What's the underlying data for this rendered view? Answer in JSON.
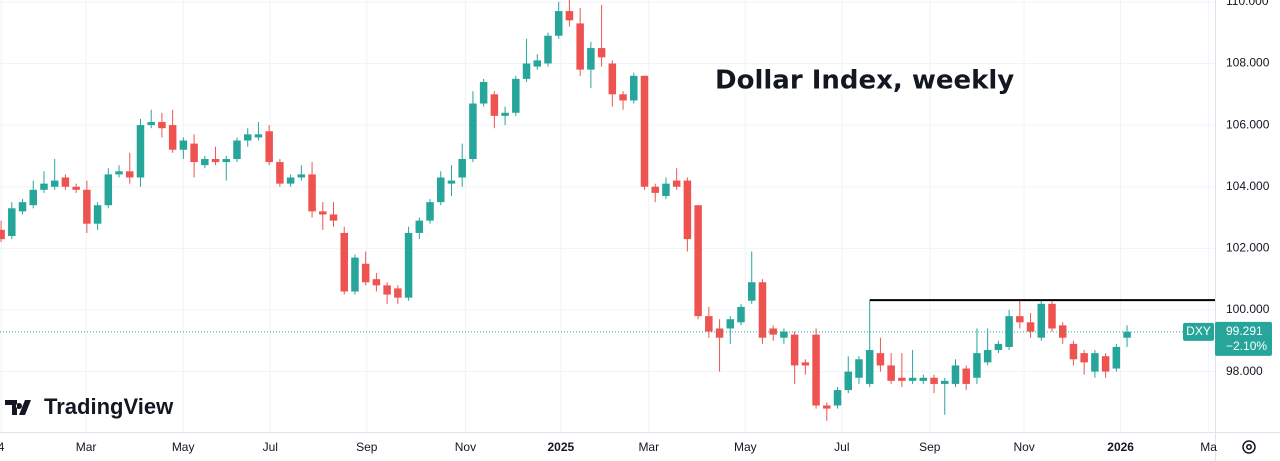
{
  "chart_data": {
    "type": "candlestick",
    "title": "Dollar Index, weekly",
    "symbol": "DXY",
    "change_label": "−2.10%",
    "watermark": "TradingView",
    "up_color": "#26a69a",
    "down_color": "#ef5350",
    "grid": true,
    "open": [
      102.6,
      102.4,
      103.2,
      103.4,
      103.9,
      104.0,
      104.3,
      104.0,
      103.9,
      102.8,
      103.4,
      104.4,
      104.5,
      104.3,
      106.0,
      106.1,
      106.0,
      105.2,
      105.4,
      104.7,
      104.9,
      104.8,
      104.9,
      105.5,
      105.6,
      105.8,
      104.8,
      104.1,
      104.3,
      104.4,
      103.2,
      103.1,
      102.5,
      100.6,
      101.5,
      101.0,
      100.8,
      100.7,
      100.4,
      102.5,
      102.9,
      103.5,
      104.1,
      104.3,
      104.9,
      106.7,
      107.0,
      106.3,
      106.4,
      107.5,
      107.9,
      108.0,
      108.9,
      109.7,
      109.3,
      107.8,
      108.5,
      108.0,
      107.0,
      106.8,
      107.6,
      104.0,
      103.7,
      104.2,
      104.2,
      103.4,
      99.8,
      99.4,
      99.4,
      99.6,
      100.3,
      100.9,
      99.4,
      99.1,
      99.2,
      98.3,
      99.2,
      96.9,
      96.9,
      97.4,
      97.8,
      97.6,
      98.6,
      98.2,
      97.8,
      97.7,
      97.7,
      97.8,
      97.6,
      97.6,
      98.1,
      97.8,
      98.3,
      98.7,
      98.8,
      99.8,
      99.6,
      99.1,
      100.2,
      99.5,
      98.9,
      98.6,
      98.0,
      98.5,
      98.1,
      99.1
    ],
    "high": [
      102.9,
      103.5,
      103.6,
      104.2,
      104.5,
      104.9,
      104.4,
      104.1,
      104.2,
      103.5,
      104.6,
      104.7,
      105.1,
      106.2,
      106.5,
      106.4,
      106.5,
      105.6,
      105.7,
      105.0,
      105.3,
      105.0,
      105.6,
      105.9,
      106.1,
      106.0,
      104.9,
      104.4,
      104.7,
      104.8,
      103.5,
      103.5,
      102.7,
      101.8,
      101.9,
      101.2,
      100.9,
      100.8,
      102.7,
      103.0,
      103.6,
      104.5,
      104.7,
      105.4,
      107.1,
      107.5,
      107.1,
      106.6,
      107.6,
      108.8,
      108.3,
      109.0,
      110.0,
      110.1,
      109.8,
      108.7,
      109.9,
      108.1,
      107.1,
      107.7,
      107.6,
      104.1,
      104.3,
      104.6,
      104.3,
      103.4,
      100.1,
      99.7,
      99.8,
      100.2,
      101.9,
      101.0,
      99.5,
      99.4,
      99.3,
      98.4,
      99.4,
      97.0,
      97.5,
      98.5,
      98.5,
      100.3,
      99.1,
      98.6,
      98.6,
      98.7,
      97.9,
      97.9,
      97.8,
      98.4,
      98.2,
      99.4,
      99.4,
      99.0,
      100.0,
      100.3,
      99.9,
      100.3,
      100.3,
      99.6,
      99.0,
      98.7,
      98.7,
      98.6,
      98.9,
      99.5
    ],
    "low": [
      102.2,
      102.3,
      103.1,
      103.3,
      103.8,
      103.9,
      103.9,
      103.8,
      102.5,
      102.6,
      103.3,
      104.3,
      104.1,
      104.0,
      105.9,
      105.6,
      105.1,
      104.9,
      104.3,
      104.6,
      104.7,
      104.2,
      104.8,
      105.3,
      105.5,
      104.7,
      104.0,
      104.0,
      104.2,
      103.0,
      102.6,
      102.7,
      100.5,
      100.5,
      100.8,
      100.6,
      100.2,
      100.2,
      100.3,
      102.3,
      102.8,
      103.4,
      103.7,
      104.0,
      104.8,
      106.6,
      105.9,
      106.0,
      106.3,
      107.4,
      107.8,
      107.9,
      108.8,
      109.2,
      107.6,
      107.2,
      107.9,
      106.6,
      106.5,
      106.7,
      103.9,
      103.5,
      103.6,
      103.9,
      101.9,
      99.7,
      99.1,
      98.0,
      98.9,
      99.5,
      100.2,
      98.9,
      99.0,
      98.9,
      97.6,
      97.9,
      96.8,
      96.4,
      96.8,
      97.3,
      97.6,
      97.5,
      98.0,
      97.6,
      97.5,
      97.6,
      97.6,
      97.3,
      96.6,
      97.5,
      97.4,
      97.6,
      98.2,
      98.6,
      98.7,
      99.4,
      99.1,
      99.0,
      99.3,
      98.9,
      98.2,
      97.9,
      97.8,
      97.8,
      98.0,
      98.8
    ],
    "close": [
      102.3,
      103.3,
      103.5,
      103.9,
      104.1,
      104.2,
      104.0,
      103.9,
      102.8,
      103.4,
      104.4,
      104.5,
      104.3,
      106.0,
      106.1,
      105.9,
      105.2,
      105.5,
      104.8,
      104.9,
      104.8,
      104.9,
      105.5,
      105.7,
      105.7,
      104.8,
      104.1,
      104.3,
      104.4,
      103.2,
      103.1,
      102.9,
      100.6,
      101.7,
      100.9,
      100.8,
      100.5,
      100.4,
      102.5,
      102.9,
      103.5,
      104.3,
      104.2,
      104.9,
      106.7,
      107.4,
      106.3,
      106.4,
      107.5,
      108.0,
      108.1,
      108.9,
      109.7,
      109.4,
      107.8,
      108.5,
      108.2,
      107.0,
      106.8,
      107.6,
      104.0,
      103.8,
      104.1,
      104.0,
      102.3,
      99.8,
      99.3,
      99.1,
      99.7,
      100.1,
      100.9,
      99.1,
      99.2,
      99.3,
      98.2,
      98.2,
      96.9,
      96.8,
      97.4,
      98.0,
      98.4,
      98.7,
      98.2,
      97.7,
      97.7,
      97.8,
      97.8,
      97.6,
      97.7,
      98.2,
      97.6,
      98.6,
      98.7,
      98.9,
      99.8,
      99.6,
      99.3,
      100.2,
      99.4,
      99.1,
      98.4,
      98.3,
      98.6,
      98.0,
      98.8,
      99.291
    ],
    "xlim": [
      -0.1,
      113.2
    ],
    "xticks": [
      {
        "value": 0,
        "label": "4"
      },
      {
        "value": 7.93,
        "label": "Mar"
      },
      {
        "value": 16.98,
        "label": "May"
      },
      {
        "value": 25.1,
        "label": "Jul"
      },
      {
        "value": 34.1,
        "label": "Sep"
      },
      {
        "value": 43.3,
        "label": "Nov"
      },
      {
        "value": 52.2,
        "label": "2025"
      },
      {
        "value": 60.4,
        "label": "Mar"
      },
      {
        "value": 69.4,
        "label": "May"
      },
      {
        "value": 78.4,
        "label": "Jul"
      },
      {
        "value": 86.6,
        "label": "Sep"
      },
      {
        "value": 95.4,
        "label": "Nov"
      },
      {
        "value": 104.4,
        "label": "2026"
      },
      {
        "value": 112.6,
        "label": "Ma"
      }
    ],
    "ylim": [
      96.04,
      110.06
    ],
    "yticks": [
      {
        "value": 98,
        "label": "98.000"
      },
      {
        "value": 100,
        "label": "100.000"
      },
      {
        "value": 102,
        "label": "102.000"
      },
      {
        "value": 104,
        "label": "104.000"
      },
      {
        "value": 106,
        "label": "106.000"
      },
      {
        "value": 108,
        "label": "108.000"
      },
      {
        "value": 110,
        "label": "110.000"
      }
    ],
    "resistance": 100.32,
    "resistance_start": 81
  }
}
